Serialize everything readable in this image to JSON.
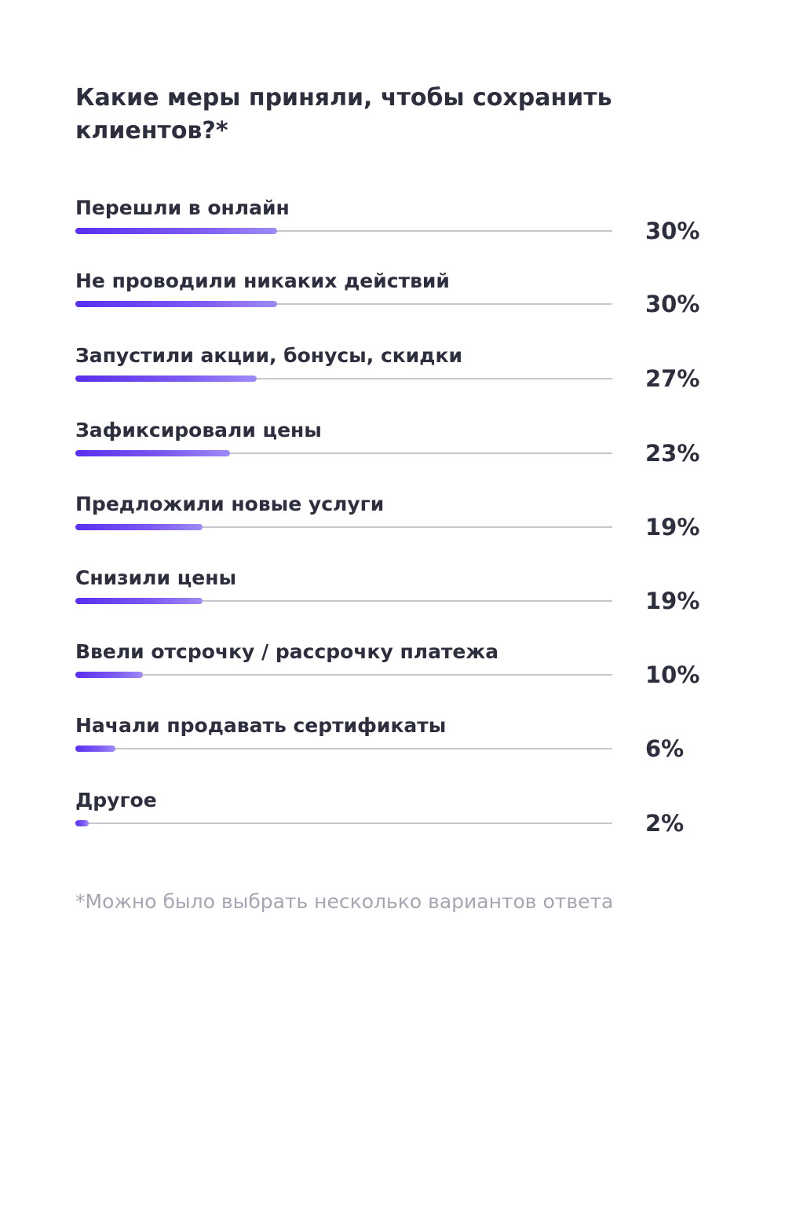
{
  "title": "Какие меры приняли, чтобы сохранить клиентов?*",
  "footnote": "*Можно было выбрать несколько вариантов ответа",
  "colors": {
    "bar_start": "#5a2ff0",
    "bar_end": "#9f8af6",
    "track": "#c6c7cf",
    "text": "#2d2f3f",
    "footnote": "#a4a6b3"
  },
  "chart_data": {
    "type": "bar",
    "orientation": "horizontal",
    "title": "Какие меры приняли, чтобы сохранить клиентов?*",
    "xlim": [
      0,
      80
    ],
    "categories": [
      "Перешли в онлайн",
      "Не проводили никаких действий",
      "Запустили акции, бонусы, скидки",
      "Зафиксировали цены",
      "Предложили новые услуги",
      "Снизили цены",
      "Ввели отсрочку / рассрочку платежа",
      "Начали продавать сертификаты",
      "Другое"
    ],
    "values": [
      30,
      30,
      27,
      23,
      19,
      19,
      10,
      6,
      2
    ],
    "value_labels": [
      "30%",
      "30%",
      "27%",
      "23%",
      "19%",
      "19%",
      "10%",
      "6%",
      "2%"
    ]
  }
}
